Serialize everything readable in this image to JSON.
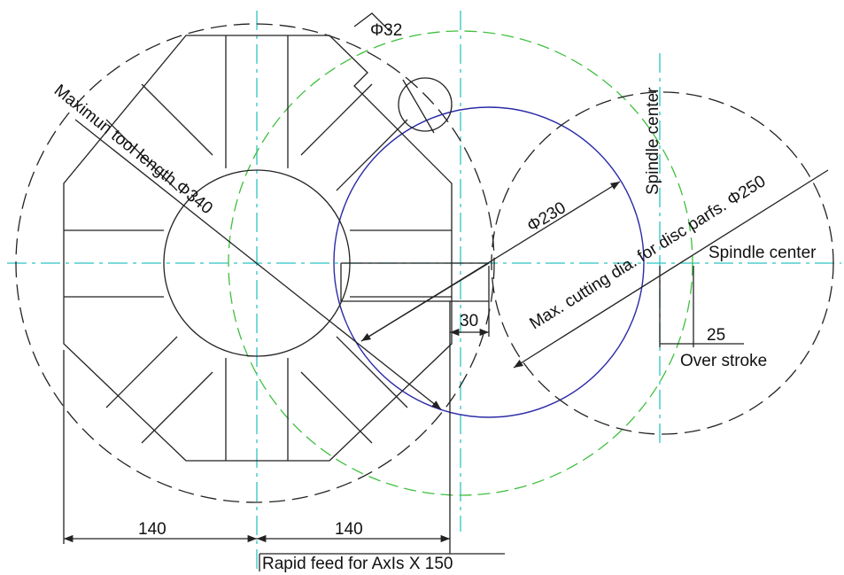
{
  "labels": {
    "phi32": "Φ32",
    "tool_length": "Maximun tool length Φ340",
    "spindle_center_vertical": "Spindle center",
    "phi230": "Φ230",
    "max_cutting": "Max. cutting dia. for disc parfs. Φ250",
    "spindle_center_horizontal": "Spindle center",
    "dim_30": "30",
    "dim_25": "25",
    "over_stroke": "Over stroke",
    "dim_140_left": "140",
    "dim_140_right": "140",
    "rapid_feed": "Rapid feed for AxIs X 150"
  }
}
